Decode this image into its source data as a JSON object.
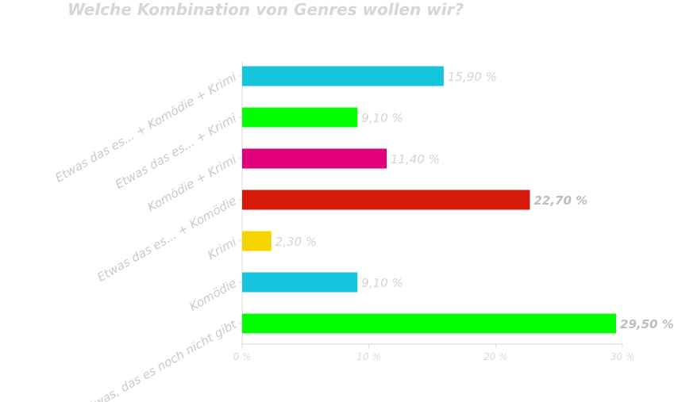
{
  "chart_data": {
    "type": "bar",
    "orientation": "horizontal",
    "title": "Welche Kombination von Genres wollen wir?",
    "categories": [
      "Etwas, das es noch nicht gibt",
      "Komödie",
      "Krimi",
      "Etwas das es... + Komödie",
      "Komödie + Krimi",
      "Etwas das es... + Krimi",
      "Etwas das es... + Komödie + Krimi"
    ],
    "values": [
      29.5,
      9.1,
      2.3,
      22.7,
      11.4,
      9.1,
      15.9
    ],
    "data_labels": [
      "29,50 %",
      "9,10 %",
      "2,30 %",
      "22,70 %",
      "11,40 %",
      "9,10 %",
      "15,90 %"
    ],
    "bold_labels": [
      true,
      false,
      false,
      true,
      false,
      false,
      false
    ],
    "colors": [
      "#00ff00",
      "#17c4dd",
      "#f5d400",
      "#d61a0a",
      "#e0007a",
      "#00ff00",
      "#17c4dd"
    ],
    "xlim": [
      0,
      30
    ],
    "xticks": [
      0,
      10,
      20,
      30
    ],
    "xtick_labels": [
      "0 %",
      "10 %",
      "20 %",
      "30 %"
    ],
    "grid": false,
    "legend": "none"
  }
}
